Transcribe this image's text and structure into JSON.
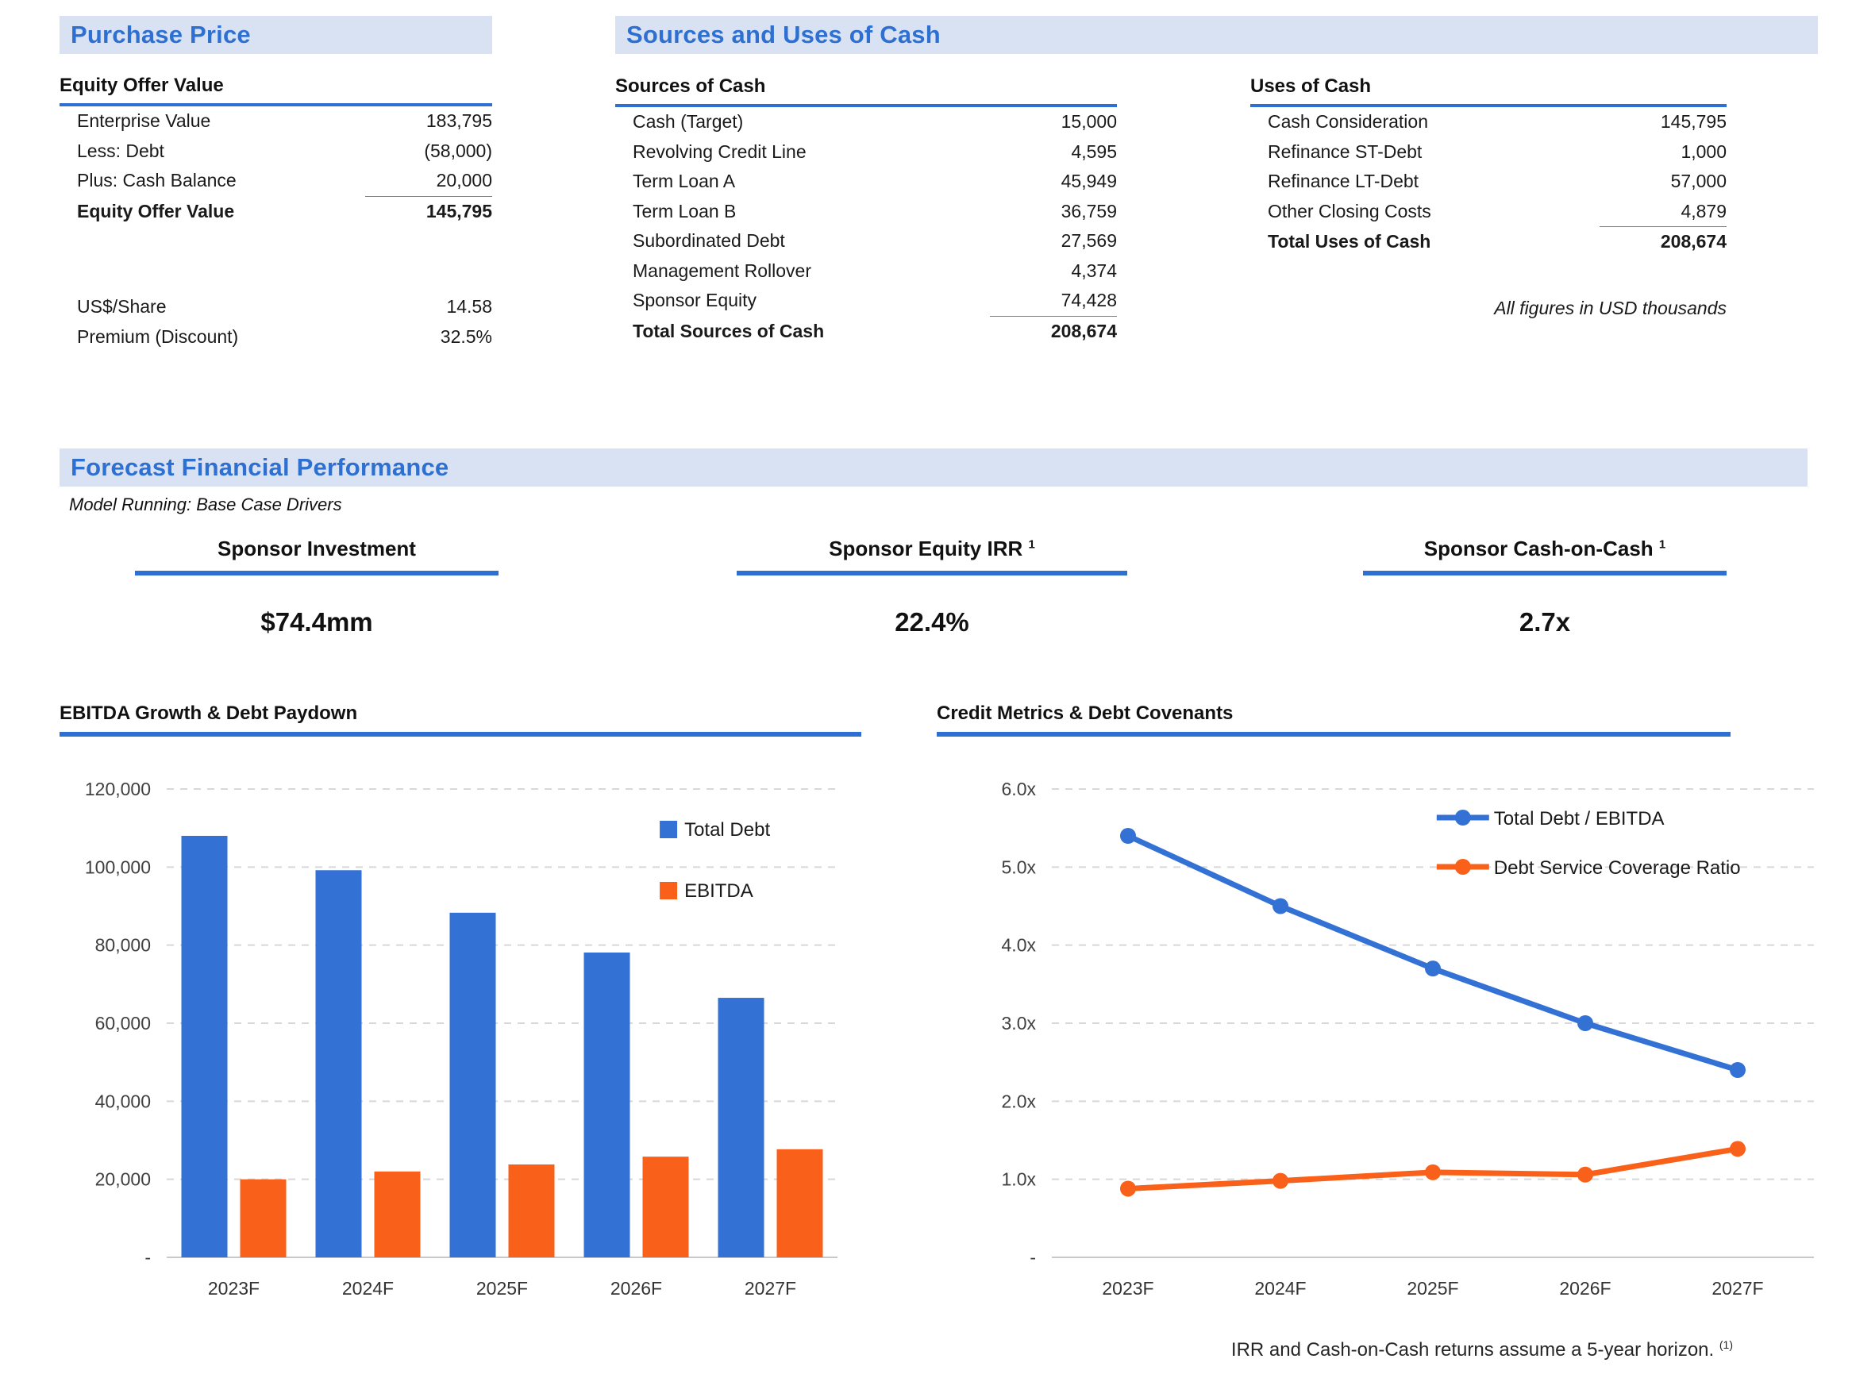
{
  "colors": {
    "accent_blue": "#2E70D2",
    "band_bg": "#D9E2F3",
    "series_blue": "#3372D4",
    "series_orange": "#F9611A",
    "gridline": "#D8D8D8",
    "axis_text": "#404040"
  },
  "purchase_price": {
    "section_title": "Purchase Price",
    "table": {
      "header": "Equity Offer Value",
      "rows": [
        {
          "label": "Enterprise Value",
          "value": "183,795"
        },
        {
          "label": "Less: Debt",
          "value": "(58,000)"
        },
        {
          "label": "Plus: Cash Balance",
          "value": "20,000"
        },
        {
          "label": "Equity Offer Value",
          "value": "145,795"
        }
      ]
    },
    "share_rows": [
      {
        "label": "US$/Share",
        "value": "14.58"
      },
      {
        "label": "Premium (Discount)",
        "value": "32.5%"
      }
    ]
  },
  "sources_uses": {
    "section_title": "Sources and Uses of Cash",
    "sources": {
      "header": "Sources of Cash",
      "rows": [
        {
          "label": "Cash (Target)",
          "value": "15,000"
        },
        {
          "label": "Revolving Credit Line",
          "value": "4,595"
        },
        {
          "label": "Term Loan A",
          "value": "45,949"
        },
        {
          "label": "Term Loan B",
          "value": "36,759"
        },
        {
          "label": "Subordinated Debt",
          "value": "27,569"
        },
        {
          "label": "Management Rollover",
          "value": "4,374"
        },
        {
          "label": "Sponsor Equity",
          "value": "74,428"
        },
        {
          "label": "Total Sources of Cash",
          "value": "208,674"
        }
      ]
    },
    "uses": {
      "header": "Uses of Cash",
      "rows": [
        {
          "label": "Cash Consideration",
          "value": "145,795"
        },
        {
          "label": "Refinance ST-Debt",
          "value": "1,000"
        },
        {
          "label": "Refinance LT-Debt",
          "value": "57,000"
        },
        {
          "label": "Other Closing Costs",
          "value": "4,879"
        },
        {
          "label": "Total Uses of Cash",
          "value": "208,674"
        }
      ]
    },
    "note": "All figures in USD thousands"
  },
  "forecast": {
    "section_title": "Forecast Financial Performance",
    "subtitle": "Model Running: Base Case Drivers",
    "kpis": [
      {
        "label": "Sponsor Investment",
        "sup": "",
        "value": "$74.4mm"
      },
      {
        "label": "Sponsor Equity IRR",
        "sup": "1",
        "value": "22.4%"
      },
      {
        "label": "Sponsor Cash-on-Cash",
        "sup": "1",
        "value": "2.7x"
      }
    ]
  },
  "footnote": {
    "text": "IRR and Cash-on-Cash returns assume a 5-year horizon.",
    "sup": "(1)"
  },
  "chart_data": [
    {
      "type": "bar",
      "title": "EBITDA Growth & Debt Paydown",
      "categories": [
        "2023F",
        "2024F",
        "2025F",
        "2026F",
        "2027F"
      ],
      "series": [
        {
          "name": "Total Debt",
          "color": "#3372D4",
          "values": [
            108000,
            99200,
            88300,
            78100,
            66500
          ]
        },
        {
          "name": "EBITDA",
          "color": "#F9611A",
          "values": [
            20000,
            22000,
            23800,
            25800,
            27700
          ]
        }
      ],
      "xlabel": "",
      "ylabel": "",
      "ylim": [
        0,
        120000
      ],
      "ytick_step": 20000,
      "ytick_labels": [
        "-",
        "20,000",
        "40,000",
        "60,000",
        "80,000",
        "100,000",
        "120,000"
      ],
      "grid": true,
      "legend_position": "top-right-inside"
    },
    {
      "type": "line",
      "title": "Credit Metrics & Debt Covenants",
      "categories": [
        "2023F",
        "2024F",
        "2025F",
        "2026F",
        "2027F"
      ],
      "series": [
        {
          "name": "Total Debt / EBITDA",
          "color": "#3372D4",
          "values": [
            5.4,
            4.5,
            3.7,
            3.0,
            2.4
          ]
        },
        {
          "name": "Debt Service Coverage Ratio",
          "color": "#F9611A",
          "values": [
            0.88,
            0.98,
            1.09,
            1.06,
            1.39
          ]
        }
      ],
      "xlabel": "",
      "ylabel": "",
      "ylim": [
        0,
        6
      ],
      "ytick_step": 1,
      "ytick_labels": [
        "-",
        "1.0x",
        "2.0x",
        "3.0x",
        "4.0x",
        "5.0x",
        "6.0x"
      ],
      "grid": true,
      "legend_position": "top-right-inside"
    }
  ]
}
